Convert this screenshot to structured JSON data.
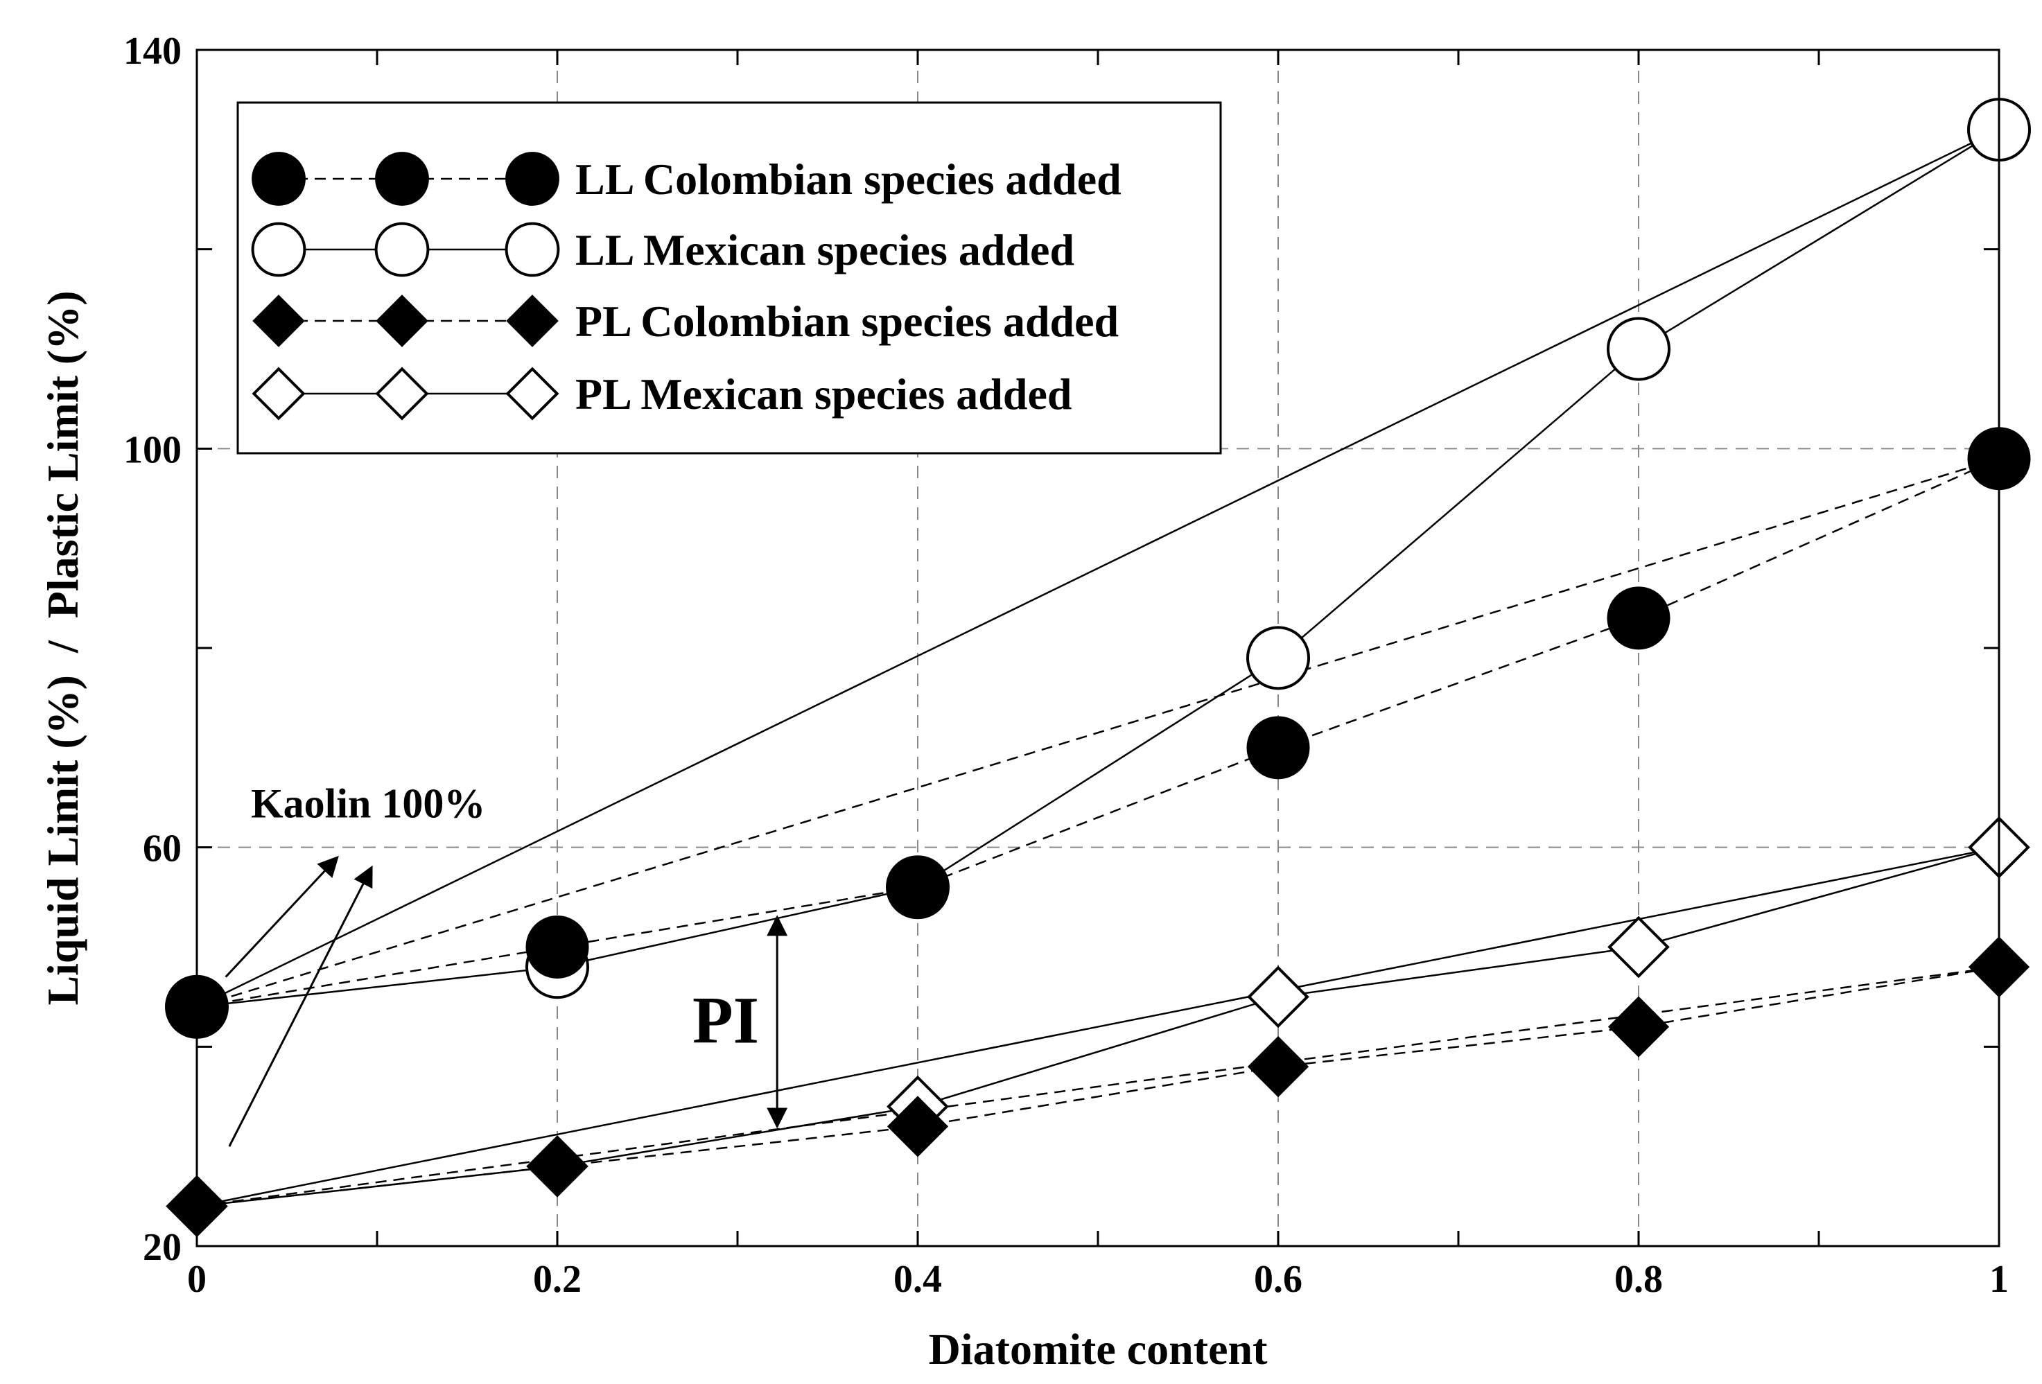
{
  "chart_data": {
    "type": "scatter",
    "title": "",
    "xlabel": "Diatomite content",
    "ylabel": "Liquid Limit (%)  /  Plastic Limit (%)",
    "xlim": [
      0,
      1
    ],
    "ylim": [
      20,
      140
    ],
    "x_ticks": [
      0,
      0.2,
      0.4,
      0.6,
      0.8,
      1
    ],
    "x_tick_labels": [
      "0",
      "0.2",
      "0.4",
      "0.6",
      "0.8",
      "1"
    ],
    "y_ticks": [
      20,
      60,
      100,
      140
    ],
    "y_tick_labels": [
      "20",
      "60",
      "100",
      "140"
    ],
    "grid": true,
    "legend_position": "top-left",
    "series": [
      {
        "name": "LL Colombian species added",
        "marker": "filled-circle",
        "line": "dashed",
        "x": [
          0,
          0.2,
          0.4,
          0.6,
          0.8,
          1
        ],
        "y": [
          44,
          50,
          56,
          70,
          83,
          99
        ]
      },
      {
        "name": "LL Mexican species added",
        "marker": "open-circle",
        "line": "solid",
        "x": [
          0,
          0.2,
          0.4,
          0.6,
          0.8,
          1
        ],
        "y": [
          44,
          48,
          56,
          79,
          110,
          132
        ]
      },
      {
        "name": "PL Colombian species added",
        "marker": "filled-diamond",
        "line": "dashed",
        "x": [
          0,
          0.2,
          0.4,
          0.6,
          0.8,
          1
        ],
        "y": [
          24,
          28,
          32,
          38,
          42,
          48
        ]
      },
      {
        "name": "PL Mexican species added",
        "marker": "open-diamond",
        "line": "solid",
        "x": [
          0,
          0.2,
          0.4,
          0.6,
          0.8,
          1
        ],
        "y": [
          24,
          28,
          34,
          45,
          50,
          60
        ]
      }
    ],
    "reference_lines": [
      {
        "style": "solid",
        "x": [
          0,
          1
        ],
        "y": [
          44,
          132
        ]
      },
      {
        "style": "dashed",
        "x": [
          0,
          1
        ],
        "y": [
          44,
          99
        ]
      },
      {
        "style": "solid",
        "x": [
          0,
          1
        ],
        "y": [
          24,
          60
        ]
      },
      {
        "style": "dashed",
        "x": [
          0,
          1
        ],
        "y": [
          24,
          48
        ]
      }
    ],
    "annotations": [
      {
        "text": "Kaolin 100%",
        "x": 0.03,
        "y": 63
      },
      {
        "text": "PI",
        "x": 0.275,
        "y": 42.5
      }
    ],
    "pi_arrow": {
      "x": 0.322,
      "y_from": 32,
      "y_to": 53
    },
    "kaolin_arrows": [
      {
        "x_from": 0.016,
        "y_from": 47,
        "x_to": 0.078,
        "y_to": 59
      },
      {
        "x_from": 0.018,
        "y_from": 30,
        "x_to": 0.097,
        "y_to": 58
      }
    ]
  }
}
